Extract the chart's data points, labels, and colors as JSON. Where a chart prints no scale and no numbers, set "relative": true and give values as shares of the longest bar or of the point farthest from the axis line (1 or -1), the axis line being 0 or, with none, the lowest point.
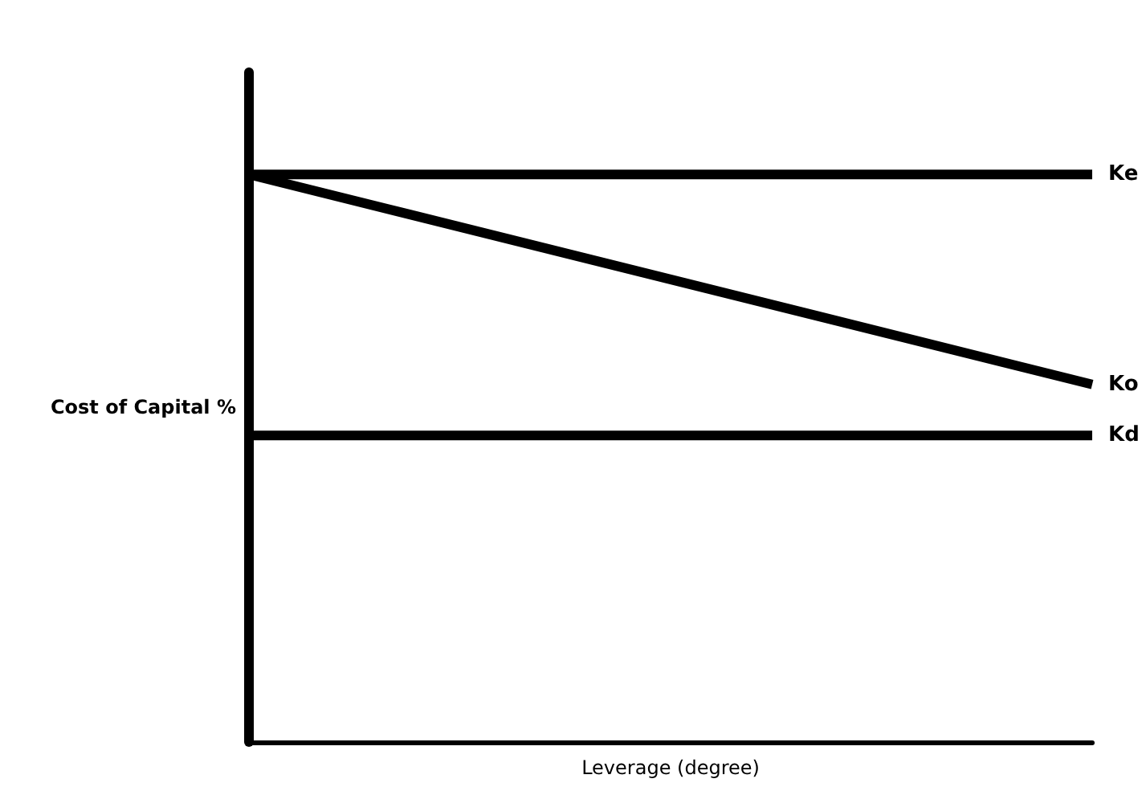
{
  "chart_data": {
    "type": "line",
    "relative": true,
    "xlabel": "Leverage (degree)",
    "ylabel": "Cost of Capital %",
    "categories": [
      null,
      null
    ],
    "legend": false,
    "grid": false,
    "marker": "none",
    "line_style": "solid",
    "series": [
      {
        "name": "Ke",
        "color": "#000000",
        "values": [
          1,
          1
        ]
      },
      {
        "name": "Ko",
        "color": "#000000",
        "values": [
          1,
          0.63
        ]
      },
      {
        "name": "Kd",
        "color": "#000000",
        "values": [
          0.54,
          0.54
        ]
      }
    ]
  }
}
